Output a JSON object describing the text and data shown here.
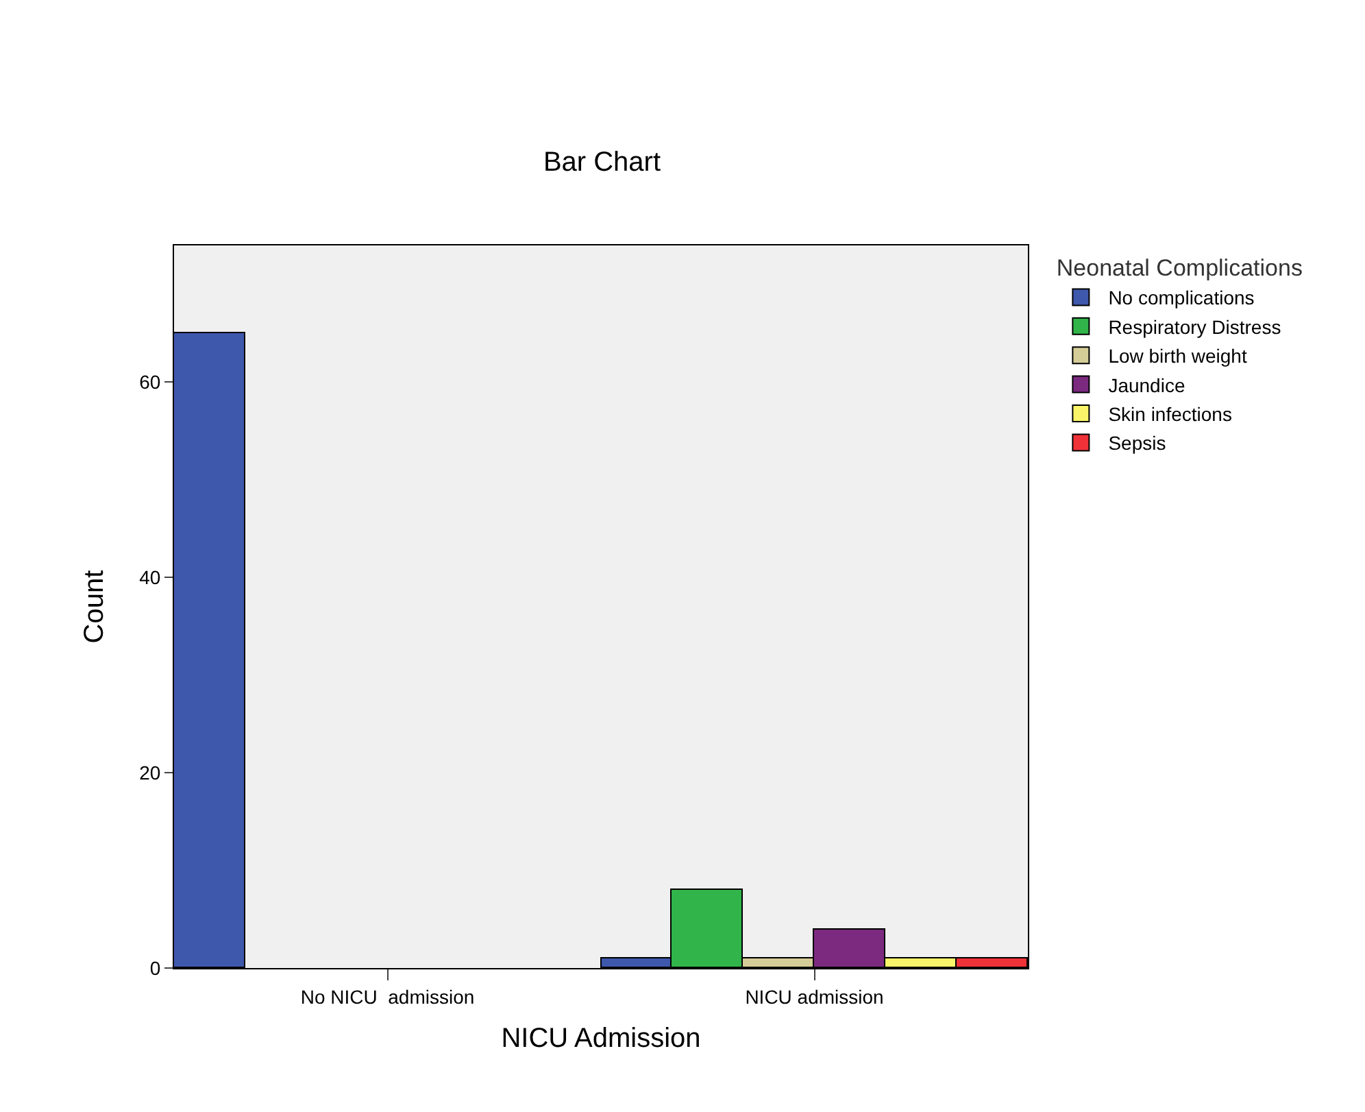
{
  "chart_data": {
    "type": "bar",
    "title": "Bar Chart",
    "xlabel": "NICU Admission",
    "ylabel": "Count",
    "legend_title": "Neonatal Complications",
    "categories": [
      "No NICU  admission",
      "NICU admission"
    ],
    "series": [
      {
        "name": "No complications",
        "color": "#3e58ac",
        "values": [
          65,
          1
        ]
      },
      {
        "name": "Respiratory Distress",
        "color": "#31b54a",
        "values": [
          null,
          8
        ]
      },
      {
        "name": "Low birth weight",
        "color": "#d4cd98",
        "values": [
          null,
          1
        ]
      },
      {
        "name": "Jaundice",
        "color": "#7c2a80",
        "values": [
          null,
          4
        ]
      },
      {
        "name": "Skin infections",
        "color": "#fbf669",
        "values": [
          null,
          1
        ]
      },
      {
        "name": "Sepsis",
        "color": "#ee3238",
        "values": [
          null,
          1
        ]
      }
    ],
    "ylim": [
      0,
      74
    ],
    "yticks": [
      0,
      20,
      40,
      60
    ],
    "grid": false,
    "legend": "right"
  }
}
